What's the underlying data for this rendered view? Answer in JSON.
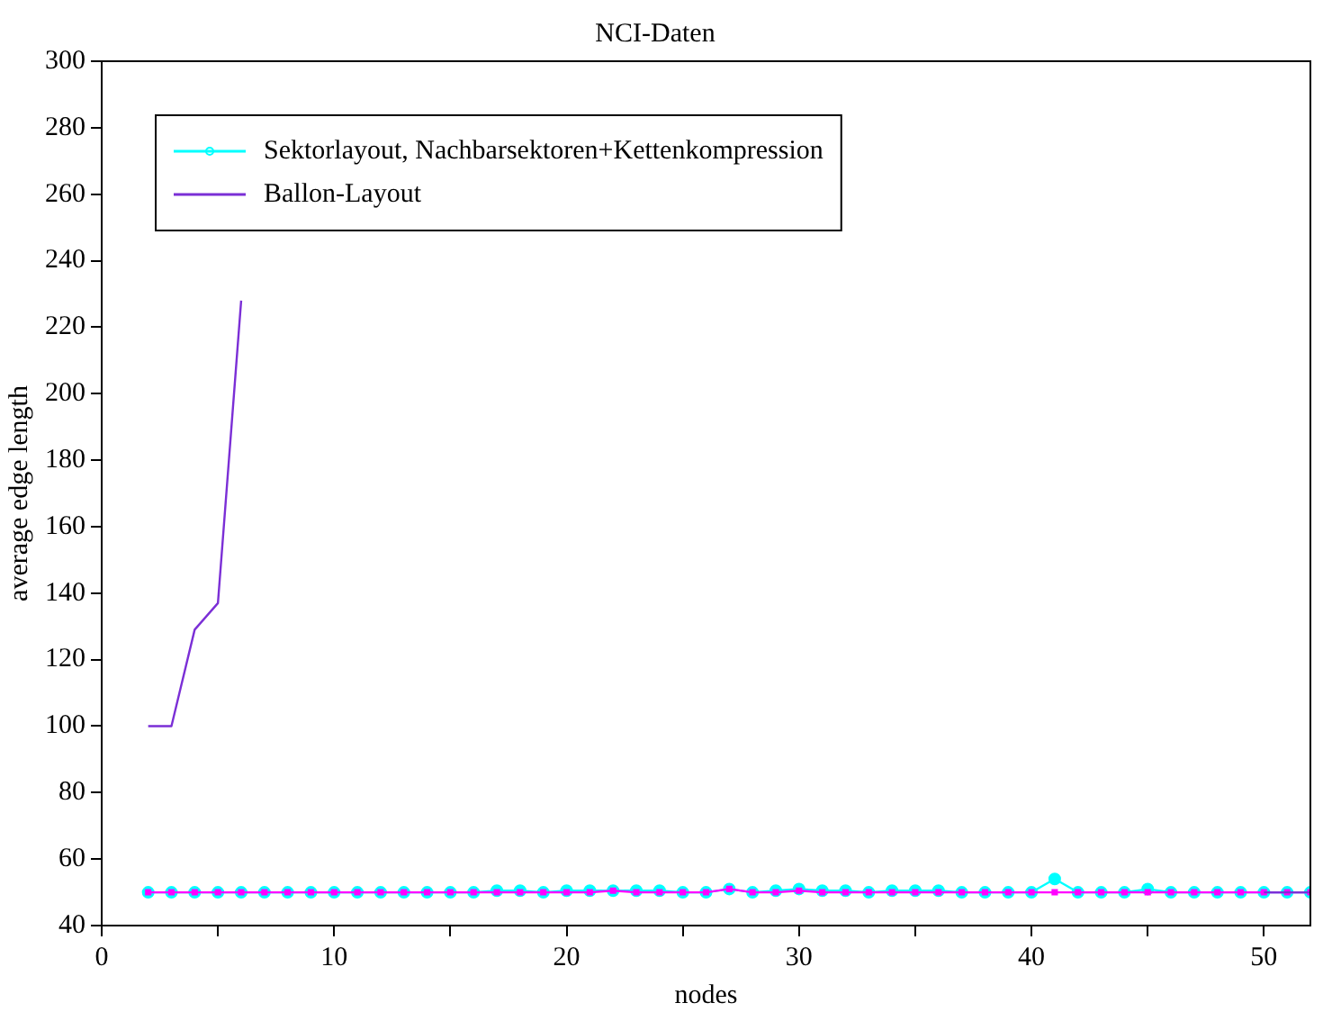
{
  "chart_data": {
    "type": "line",
    "title": "NCI-Daten",
    "xlabel": "nodes",
    "ylabel": "average edge length",
    "xlim": [
      0,
      52
    ],
    "xticks": [
      0,
      {
        "value": 5,
        "label": null
      },
      10,
      {
        "value": 15,
        "label": null
      },
      20,
      {
        "value": 25,
        "label": null
      },
      30,
      {
        "value": 35,
        "label": null
      },
      40,
      {
        "value": 45,
        "label": null
      },
      50
    ],
    "ylim": [
      40,
      300
    ],
    "yticks": [
      40,
      60,
      80,
      100,
      120,
      140,
      160,
      180,
      200,
      220,
      240,
      260,
      280,
      300
    ],
    "grid": false,
    "legend": "top left",
    "series": [
      {
        "name": "Sektorlayout, Nachbarsektoren+Kettenkompression",
        "color": "#00ffff",
        "marker": "circle",
        "x": [
          2,
          3,
          4,
          5,
          6,
          7,
          8,
          9,
          10,
          11,
          12,
          13,
          14,
          15,
          16,
          17,
          18,
          19,
          20,
          21,
          22,
          23,
          24,
          25,
          26,
          27,
          28,
          29,
          30,
          31,
          32,
          33,
          34,
          35,
          36,
          37,
          38,
          39,
          40,
          41,
          42,
          43,
          44,
          45,
          46,
          47,
          48,
          49,
          50,
          51,
          52
        ],
        "values": [
          50,
          50,
          50,
          50,
          50,
          50,
          50,
          50,
          50,
          50,
          50,
          50,
          50,
          50,
          50,
          50.5,
          50.5,
          50,
          50.5,
          50.5,
          50.5,
          50.5,
          50.5,
          50,
          50,
          51,
          50,
          50.5,
          51,
          50.5,
          50.5,
          50,
          50.5,
          50.5,
          50.5,
          50,
          50,
          50,
          50,
          54,
          50,
          50,
          50,
          51,
          50,
          50,
          50,
          50,
          50,
          50,
          50
        ]
      },
      {
        "color": "#ff00ff",
        "marker": "square",
        "x": [
          2,
          3,
          4,
          5,
          6,
          7,
          8,
          9,
          10,
          11,
          12,
          13,
          14,
          15,
          16,
          17,
          18,
          19,
          20,
          21,
          22,
          23,
          24,
          25,
          26,
          27,
          28,
          29,
          30,
          31,
          32,
          33,
          34,
          35,
          36,
          37,
          38,
          39,
          40,
          41,
          42,
          43,
          44,
          45,
          46,
          47,
          48,
          49,
          50,
          51,
          52
        ],
        "values": [
          50,
          50,
          50,
          50,
          50,
          50,
          50,
          50,
          50,
          50,
          50,
          50,
          50,
          50,
          50,
          50,
          50,
          50,
          50,
          50,
          50.5,
          50,
          50,
          50,
          50,
          51,
          50,
          50,
          50.5,
          50,
          50,
          50,
          50,
          50,
          50,
          50,
          50,
          50,
          50,
          50,
          50,
          50,
          50,
          50,
          50,
          50,
          50,
          50,
          50,
          50,
          50
        ]
      },
      {
        "name": "Ballon-Layout",
        "color": "#7b2fd6",
        "marker": "none",
        "x": [
          2,
          3,
          4,
          5,
          6,
          7,
          50,
          51,
          52
        ],
        "values": [
          100,
          100,
          129,
          137,
          228,
          null,
          50,
          50,
          50
        ]
      }
    ]
  }
}
